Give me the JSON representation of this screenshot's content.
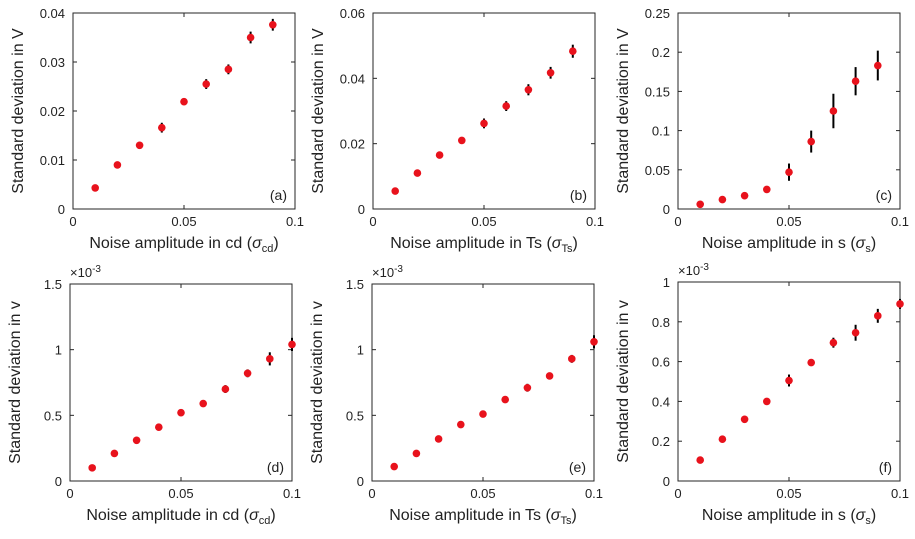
{
  "colors": {
    "marker": "#e8121c",
    "errorbar": "#000000",
    "axis": "#262626"
  },
  "chart_data": [
    {
      "type": "scatter",
      "panel": "(a)",
      "xlabel": "Noise amplitude in cd",
      "xsym": "σ",
      "xsub": "cd",
      "ylabel": "Standard deviation in V",
      "multiplier": "",
      "xlim": [
        0,
        0.1
      ],
      "ylim": [
        0,
        0.04
      ],
      "xticks": [
        0,
        0.05,
        0.1
      ],
      "xtick_labels": [
        "0",
        "0.05",
        "0.1"
      ],
      "yticks": [
        0,
        0.01,
        0.02,
        0.03,
        0.04
      ],
      "ytick_labels": [
        "0",
        "0.01",
        "0.02",
        "0.03",
        "0.04"
      ],
      "x": [
        0.01,
        0.02,
        0.03,
        0.04,
        0.05,
        0.06,
        0.07,
        0.08,
        0.09
      ],
      "y": [
        0.0043,
        0.009,
        0.013,
        0.0166,
        0.0219,
        0.0255,
        0.0285,
        0.035,
        0.0376
      ],
      "err": [
        0.0002,
        0.0003,
        0.0004,
        0.001,
        0.0004,
        0.001,
        0.001,
        0.0012,
        0.0012
      ]
    },
    {
      "type": "scatter",
      "panel": "(b)",
      "xlabel": "Noise amplitude in Ts",
      "xsym": "σ",
      "xsub": "Ts",
      "ylabel": "Standard deviation in V",
      "multiplier": "",
      "xlim": [
        0,
        0.1
      ],
      "ylim": [
        0,
        0.06
      ],
      "xticks": [
        0,
        0.05,
        0.1
      ],
      "xtick_labels": [
        "0",
        "0.05",
        "0.1"
      ],
      "yticks": [
        0,
        0.02,
        0.04,
        0.06
      ],
      "ytick_labels": [
        "0",
        "0.02",
        "0.04",
        "0.06"
      ],
      "x": [
        0.01,
        0.02,
        0.03,
        0.04,
        0.05,
        0.06,
        0.07,
        0.08,
        0.09
      ],
      "y": [
        0.0055,
        0.011,
        0.0165,
        0.021,
        0.0262,
        0.0315,
        0.0365,
        0.0417,
        0.0483
      ],
      "err": [
        0.0003,
        0.001,
        0.0005,
        0.0006,
        0.0015,
        0.0015,
        0.0017,
        0.0018,
        0.002
      ]
    },
    {
      "type": "scatter",
      "panel": "(c)",
      "xlabel": "Noise amplitude in s",
      "xsym": "σ",
      "xsub": "s",
      "ylabel": "Standard deviation in V",
      "multiplier": "",
      "xlim": [
        0,
        0.1
      ],
      "ylim": [
        0,
        0.25
      ],
      "xticks": [
        0,
        0.05,
        0.1
      ],
      "xtick_labels": [
        "0",
        "0.05",
        "0.1"
      ],
      "yticks": [
        0,
        0.05,
        0.1,
        0.15,
        0.2,
        0.25
      ],
      "ytick_labels": [
        "0",
        "0.05",
        "0.1",
        "0.15",
        "0.2",
        "0.25"
      ],
      "x": [
        0.01,
        0.02,
        0.03,
        0.04,
        0.05,
        0.06,
        0.07,
        0.08,
        0.09
      ],
      "y": [
        0.006,
        0.012,
        0.017,
        0.025,
        0.047,
        0.086,
        0.125,
        0.163,
        0.183
      ],
      "err": [
        0.001,
        0.002,
        0.003,
        0.004,
        0.011,
        0.014,
        0.022,
        0.018,
        0.019
      ]
    },
    {
      "type": "scatter",
      "panel": "(d)",
      "xlabel": "Noise amplitude in cd",
      "xsym": "σ",
      "xsub": "cd",
      "ylabel": "Standard deviation in v",
      "multiplier": "×10",
      "multiplier_exp": "-3",
      "xlim": [
        0,
        0.1
      ],
      "ylim": [
        0,
        1.5
      ],
      "xticks": [
        0,
        0.05,
        0.1
      ],
      "xtick_labels": [
        "0",
        "0.05",
        "0.1"
      ],
      "yticks": [
        0,
        0.5,
        1,
        1.5
      ],
      "ytick_labels": [
        "0",
        "0.5",
        "1",
        "1.5"
      ],
      "x": [
        0.01,
        0.02,
        0.03,
        0.04,
        0.05,
        0.06,
        0.07,
        0.08,
        0.09,
        0.1
      ],
      "y": [
        0.1,
        0.21,
        0.31,
        0.41,
        0.52,
        0.59,
        0.7,
        0.82,
        0.93,
        1.04
      ],
      "err": [
        0.005,
        0.01,
        0.01,
        0.015,
        0.015,
        0.02,
        0.03,
        0.03,
        0.05,
        0.05
      ]
    },
    {
      "type": "scatter",
      "panel": "(e)",
      "xlabel": "Noise amplitude in Ts",
      "xsym": "σ",
      "xsub": "Ts",
      "ylabel": "Standard deviation in v",
      "multiplier": "×10",
      "multiplier_exp": "-3",
      "xlim": [
        0,
        0.1
      ],
      "ylim": [
        0,
        1.5
      ],
      "xticks": [
        0,
        0.05,
        0.1
      ],
      "xtick_labels": [
        "0",
        "0.05",
        "0.1"
      ],
      "yticks": [
        0,
        0.5,
        1,
        1.5
      ],
      "ytick_labels": [
        "0",
        "0.5",
        "1",
        "1.5"
      ],
      "x": [
        0.01,
        0.02,
        0.03,
        0.04,
        0.05,
        0.06,
        0.07,
        0.08,
        0.09,
        0.1
      ],
      "y": [
        0.11,
        0.21,
        0.32,
        0.43,
        0.51,
        0.62,
        0.71,
        0.8,
        0.93,
        1.06
      ],
      "err": [
        0.005,
        0.01,
        0.01,
        0.015,
        0.015,
        0.02,
        0.03,
        0.02,
        0.03,
        0.05
      ]
    },
    {
      "type": "scatter",
      "panel": "(f)",
      "xlabel": "Noise amplitude in s",
      "xsym": "σ",
      "xsub": "s",
      "ylabel": "Standard deviation in v",
      "multiplier": "×10",
      "multiplier_exp": "-3",
      "xlim": [
        0,
        0.1
      ],
      "ylim": [
        0,
        1
      ],
      "xticks": [
        0,
        0.05,
        0.1
      ],
      "xtick_labels": [
        "0",
        "0.05",
        "0.1"
      ],
      "yticks": [
        0,
        0.2,
        0.4,
        0.6,
        0.8,
        1
      ],
      "ytick_labels": [
        "0",
        "0.2",
        "0.4",
        "0.6",
        "0.8",
        "1"
      ],
      "x": [
        0.01,
        0.02,
        0.03,
        0.04,
        0.05,
        0.06,
        0.07,
        0.08,
        0.09,
        0.1
      ],
      "y": [
        0.105,
        0.21,
        0.31,
        0.4,
        0.505,
        0.595,
        0.695,
        0.745,
        0.83,
        0.89
      ],
      "err": [
        0.005,
        0.01,
        0.01,
        0.015,
        0.03,
        0.015,
        0.025,
        0.04,
        0.035,
        0.025
      ]
    }
  ]
}
